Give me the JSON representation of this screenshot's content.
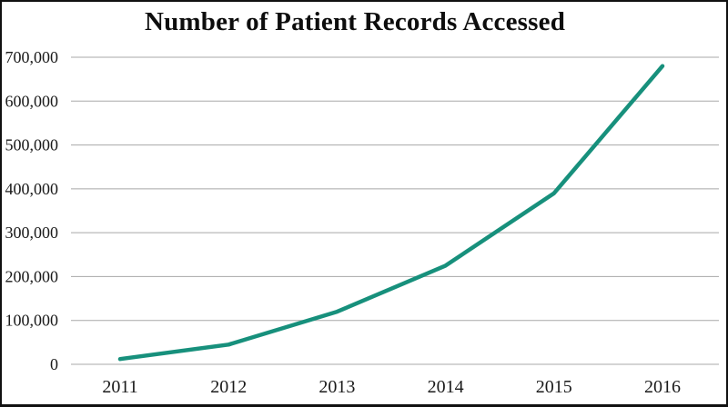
{
  "title": "Number of Patient Records Accessed",
  "colors": {
    "line": "#17907c",
    "grid": "#a8a8a8",
    "text": "#1a1a1a",
    "frame": "#111111",
    "background": "#ffffff"
  },
  "chart_data": {
    "type": "line",
    "title": "Number of Patient Records Accessed",
    "xlabel": "",
    "ylabel": "",
    "categories": [
      "2011",
      "2012",
      "2013",
      "2014",
      "2015",
      "2016"
    ],
    "values": [
      12000,
      45000,
      120000,
      225000,
      390000,
      680000
    ],
    "ylim": [
      0,
      700000
    ],
    "y_ticks": [
      0,
      100000,
      200000,
      300000,
      400000,
      500000,
      600000,
      700000
    ],
    "y_tick_labels": [
      "0",
      "100,000",
      "200,000",
      "300,000",
      "400,000",
      "500,000",
      "600,000",
      "700,000"
    ],
    "grid": true,
    "legend_position": "none",
    "marker": "none"
  }
}
